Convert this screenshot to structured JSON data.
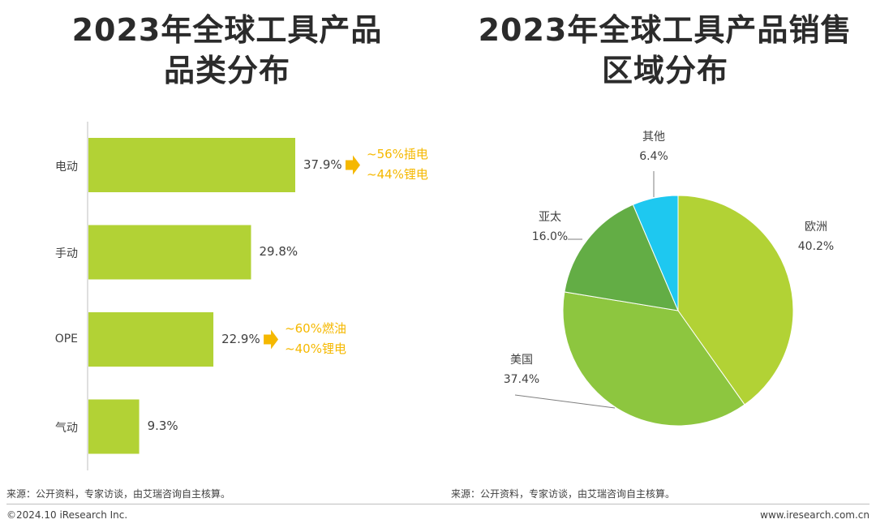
{
  "colors": {
    "bar": "#b2d235",
    "note": "#f5b800",
    "pie_europe": "#b2d235",
    "pie_usa": "#8dc63f",
    "pie_apac": "#63ad45",
    "pie_other": "#1ec8f0",
    "axis": "#bfbfbf"
  },
  "chart_data": [
    {
      "type": "bar",
      "orientation": "horizontal",
      "title": "2023年全球工具产品品类分布",
      "title_lines": [
        "2023年全球工具产品",
        "品类分布"
      ],
      "categories": [
        "电动",
        "手动",
        "OPE",
        "气动"
      ],
      "values": [
        37.9,
        29.8,
        22.9,
        9.3
      ],
      "value_labels": [
        "37.9%",
        "29.8%",
        "22.9%",
        "9.3%"
      ],
      "unit": "%",
      "annotations": [
        {
          "category": "电动",
          "lines": [
            "~56%插电",
            "~44%锂电"
          ]
        },
        {
          "category": "OPE",
          "lines": [
            "~60%燃油",
            "~40%锂电"
          ]
        }
      ],
      "source": "来源：公开资料，专家访谈，由艾瑞咨询自主核算。"
    },
    {
      "type": "pie",
      "title": "2023年全球工具产品销售区域分布",
      "title_lines": [
        "2023年全球工具产品销售",
        "区域分布"
      ],
      "slices": [
        {
          "label": "欧洲",
          "value": 40.2,
          "value_label": "40.2%"
        },
        {
          "label": "美国",
          "value": 37.4,
          "value_label": "37.4%"
        },
        {
          "label": "亚太",
          "value": 16.0,
          "value_label": "16.0%"
        },
        {
          "label": "其他",
          "value": 6.4,
          "value_label": "6.4%"
        }
      ],
      "source": "来源：公开资料，专家访谈，由艾瑞咨询自主核算。"
    }
  ],
  "footer": {
    "copyright": "©2024.10 iResearch Inc.",
    "website": "www.iresearch.com.cn"
  }
}
